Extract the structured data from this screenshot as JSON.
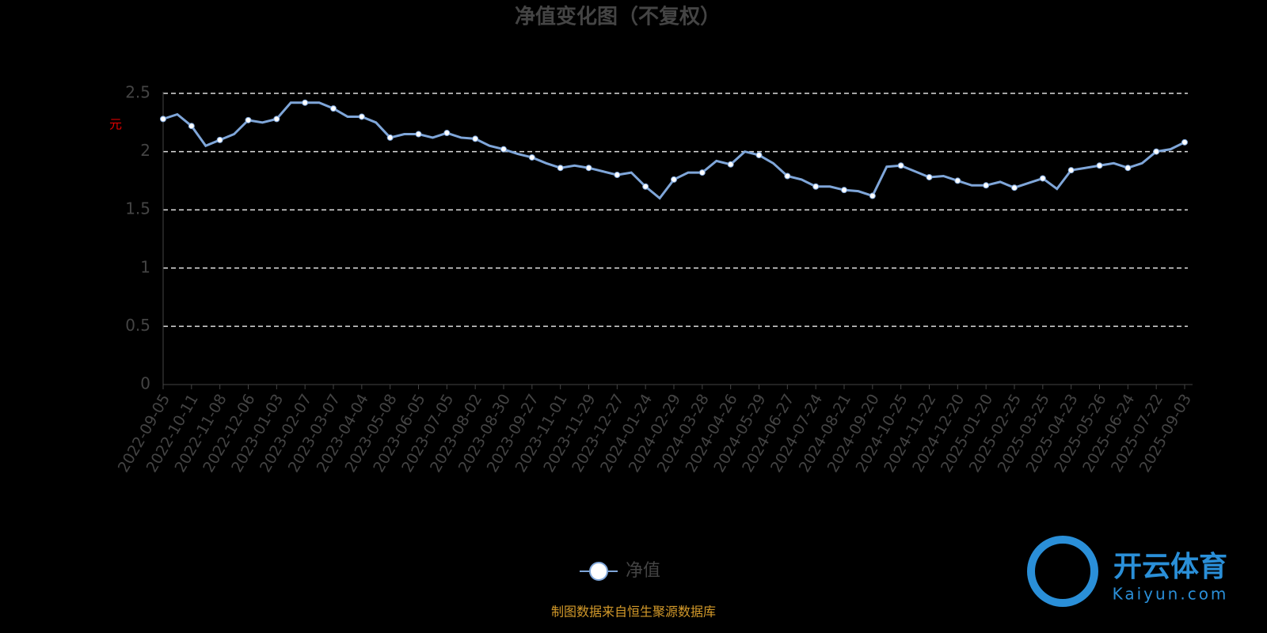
{
  "chart_data": {
    "type": "line",
    "title": "净值变化图（不复权）",
    "y_unit": "元",
    "categories": [
      "2022-09-05",
      null,
      "2022-10-11",
      null,
      "2022-11-08",
      null,
      "2022-12-06",
      null,
      "2023-01-03",
      null,
      "2023-02-07",
      null,
      "2023-03-07",
      null,
      "2023-04-04",
      null,
      "2023-05-08",
      null,
      "2023-06-05",
      null,
      "2023-07-05",
      null,
      "2023-08-02",
      null,
      "2023-08-30",
      null,
      "2023-09-27",
      null,
      "2023-11-01",
      null,
      "2023-11-29",
      null,
      "2023-12-27",
      null,
      "2024-01-24",
      null,
      "2024-02-29",
      null,
      "2024-03-28",
      null,
      "2024-04-26",
      null,
      "2024-05-29",
      null,
      "2024-06-27",
      null,
      "2024-07-24",
      null,
      "2024-08-21",
      null,
      "2024-09-20",
      null,
      "2024-10-25",
      null,
      "2024-11-22",
      null,
      "2024-12-20",
      null,
      "2025-01-20",
      null,
      "2025-02-25",
      null,
      "2025-03-25",
      null,
      "2025-04-23",
      null,
      "2025-05-26",
      null,
      "2025-06-24",
      null,
      "2025-07-22",
      null,
      "2025-09-03"
    ],
    "series": [
      {
        "name": "净值",
        "color": "#7fa6d9",
        "values": [
          2.28,
          2.32,
          2.22,
          2.05,
          2.1,
          2.15,
          2.27,
          2.25,
          2.28,
          2.42,
          2.42,
          2.42,
          2.37,
          2.3,
          2.3,
          2.25,
          2.12,
          2.15,
          2.15,
          2.12,
          2.16,
          2.12,
          2.11,
          2.05,
          2.02,
          1.98,
          1.95,
          1.9,
          1.86,
          1.88,
          1.86,
          1.83,
          1.8,
          1.82,
          1.7,
          1.6,
          1.76,
          1.82,
          1.82,
          1.92,
          1.89,
          2.0,
          1.97,
          1.9,
          1.79,
          1.76,
          1.7,
          1.7,
          1.67,
          1.66,
          1.62,
          1.87,
          1.88,
          1.83,
          1.78,
          1.79,
          1.75,
          1.71,
          1.71,
          1.74,
          1.69,
          1.73,
          1.77,
          1.68,
          1.84,
          1.86,
          1.88,
          1.9,
          1.86,
          1.9,
          2.0,
          2.02,
          2.08
        ]
      }
    ],
    "ylim": [
      0,
      2.5
    ],
    "yticks": [
      0,
      0.5,
      1,
      1.5,
      2,
      2.5
    ],
    "grid": true,
    "legend": "bottom",
    "source": "制图数据来自恒生聚源数据库",
    "watermark": {
      "brand": "开云体育",
      "url": "Kaiyun.com"
    }
  }
}
